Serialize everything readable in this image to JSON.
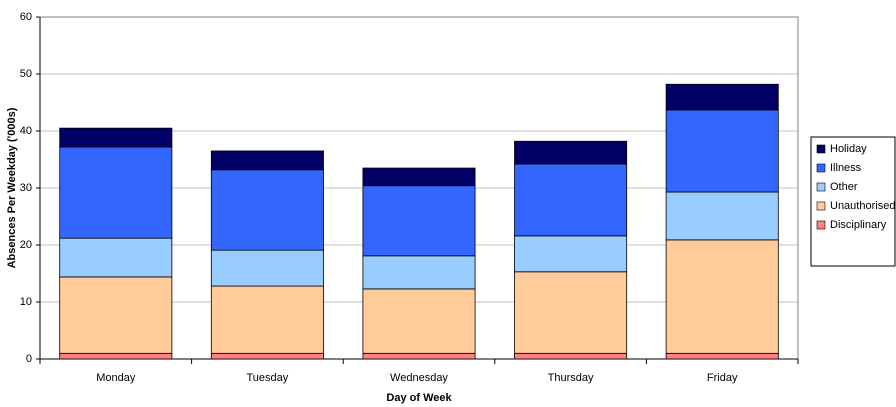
{
  "chart_data": {
    "type": "stacked-bar",
    "x_label": "Day of Week",
    "y_label": "Absences Per Weekday ('000s)",
    "categories": [
      "Monday",
      "Tuesday",
      "Wednesday",
      "Thursday",
      "Friday"
    ],
    "series": [
      {
        "name": "Disciplinary",
        "color": "#ff8080",
        "values": [
          1,
          1,
          1,
          1,
          1
        ]
      },
      {
        "name": "Unauthorised",
        "color": "#ffcc99",
        "values": [
          13.4,
          11.8,
          11.3,
          14.3,
          19.9
        ]
      },
      {
        "name": "Other",
        "color": "#99ccff",
        "values": [
          6.8,
          6.3,
          5.8,
          6.3,
          8.4
        ]
      },
      {
        "name": "Illness",
        "color": "#3366ff",
        "values": [
          16,
          14.1,
          12.3,
          12.6,
          14.4
        ]
      },
      {
        "name": "Holiday",
        "color": "#000066",
        "values": [
          3.3,
          3.3,
          3.1,
          4,
          4.5
        ]
      }
    ],
    "ylim": [
      0,
      60
    ],
    "yticks": [
      0,
      10,
      20,
      30,
      40,
      50,
      60
    ],
    "grid": true,
    "legend": "right"
  }
}
